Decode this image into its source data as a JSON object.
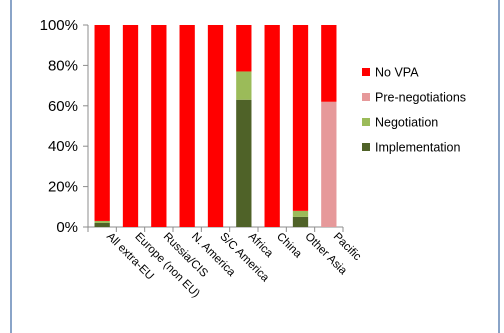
{
  "chart_data": {
    "type": "bar",
    "stacked": true,
    "categories": [
      "All extra-EU",
      "Europe (non EU)",
      "Russia/CIS",
      "N. America",
      "S/C America",
      "Africa",
      "China",
      "Other Asia",
      "Pacific"
    ],
    "series": [
      {
        "name": "Implementation",
        "color": "#4f6228",
        "values": [
          2,
          0,
          0,
          0,
          0,
          63,
          0,
          5,
          0
        ]
      },
      {
        "name": "Negotiation",
        "color": "#9bbb59",
        "values": [
          1,
          0,
          0,
          0,
          0,
          14,
          0,
          3,
          0
        ]
      },
      {
        "name": "Pre-negotiations",
        "color": "#e6999a",
        "values": [
          0,
          0,
          0,
          0,
          0,
          0,
          0,
          0,
          62
        ]
      },
      {
        "name": "No VPA",
        "color": "#ff0000",
        "values": [
          97,
          100,
          100,
          100,
          100,
          23,
          100,
          92,
          38
        ]
      }
    ],
    "legend_order": [
      "No VPA",
      "Pre-negotiations",
      "Negotiation",
      "Implementation"
    ],
    "yticks": [
      "0%",
      "20%",
      "40%",
      "60%",
      "80%",
      "100%"
    ],
    "ylim": [
      0,
      100
    ],
    "grid": false,
    "legend_position": "right"
  }
}
